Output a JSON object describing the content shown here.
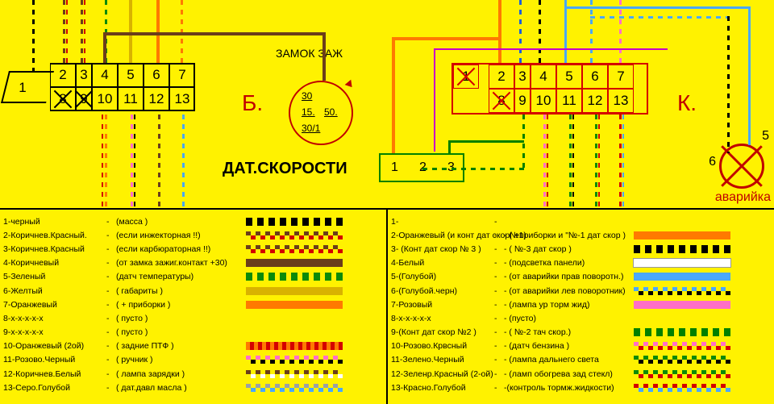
{
  "labels": {
    "b": "Б.",
    "k": "К.",
    "ign_title": "ЗАМОК ЗАЖ",
    "speed_title": "ДАТ.СКОРОСТИ",
    "hazard": "аварийка",
    "hazard_5": "5",
    "hazard_6": "6"
  },
  "ign": {
    "r1": "30",
    "r2a": "15.",
    "r2b": "50.",
    "r3": "30/1"
  },
  "conn_b": {
    "pins": [
      1,
      2,
      3,
      4,
      5,
      6,
      7,
      8,
      9,
      10,
      11,
      12,
      13
    ],
    "crossed": [
      8,
      9
    ]
  },
  "conn_k": {
    "pins": [
      1,
      2,
      3,
      4,
      5,
      6,
      7,
      8,
      9,
      10,
      11,
      12,
      13
    ],
    "crossed": [
      1,
      8
    ]
  },
  "speed": {
    "pins": [
      1,
      2,
      3
    ]
  },
  "colors": {
    "black": "#000000",
    "brown": "#6b3e1a",
    "red": "#d40000",
    "green": "#0a8a0a",
    "yellow": "#ffd400",
    "orange": "#ff7a00",
    "blue": "#1e5fd8",
    "lightblue": "#4aa8ff",
    "pink": "#ff6ec7",
    "white": "#ffffff",
    "gray": "#9aa0a6",
    "dkgreen": "#0a5a0a"
  },
  "legend_left": [
    {
      "n": "1-черный",
      "d": "(масса )",
      "c1": "#000000",
      "p": "dash"
    },
    {
      "n": "2-Коричнев.Красный.",
      "d": "(если инжекторная !!)",
      "c1": "#6b3e1a",
      "c2": "#d40000",
      "p": "bicolor-dash"
    },
    {
      "n": "3-Коричнев.Красный",
      "d": "(если карбюраторная !!)",
      "c1": "#6b3e1a",
      "c2": "#d40000",
      "p": "bicolor-dash"
    },
    {
      "n": "4-Коричневый",
      "d": "(от замка зажиг.контакт +30)",
      "c1": "#6b3e1a",
      "p": "solid"
    },
    {
      "n": "5-Зеленый",
      "d": "(датч температуры)",
      "c1": "#0a8a0a",
      "p": "dash"
    },
    {
      "n": "6-Желтый",
      "d": "( габариты )",
      "c1": "#d9b300",
      "p": "solid"
    },
    {
      "n": "7-Оранжевый",
      "d": "( + приборки )",
      "c1": "#ff7a00",
      "p": "solid"
    },
    {
      "n": "8-х-х-х-х-х",
      "d": "( пусто )",
      "c1": "#000000",
      "p": "none"
    },
    {
      "n": "9-х-х-х-х-х",
      "d": "( пусто )",
      "c1": "#000000",
      "p": "none"
    },
    {
      "n": "10-Оранжевый (2ой)",
      "d": "( задние ПТФ )",
      "c1": "#ff7a00",
      "c2": "#d40000",
      "p": "stripe"
    },
    {
      "n": "11-Розово.Черный",
      "d": "( ручник )",
      "c1": "#ff6ec7",
      "c2": "#000000",
      "p": "bicolor-dash"
    },
    {
      "n": "12-Коричнев.Белый",
      "d": "( лампа зарядки )",
      "c1": "#6b3e1a",
      "c2": "#ffffff",
      "p": "bicolor-dash"
    },
    {
      "n": "13-Серо.Голубой",
      "d": "( дат.давл масла )",
      "c1": "#9aa0a6",
      "c2": "#4aa8ff",
      "p": "bicolor-dash"
    }
  ],
  "legend_right": [
    {
      "n": "1-",
      "d": "",
      "p": "none"
    },
    {
      "n": "2-Оранжевый (и конт дат скор№1)",
      "d": "- ( +приборки и \"№-1 дат скор )",
      "c1": "#ff7a00",
      "p": "solid"
    },
    {
      "n": "3- (Конт дат скор № 3 )",
      "d": "- ( №-3 дат скор )",
      "c1": "#000000",
      "p": "dash"
    },
    {
      "n": "4-Белый",
      "d": "- (подсветка панели)",
      "c1": "#ffffff",
      "p": "solid"
    },
    {
      "n": "5-(Голубой)",
      "d": "- (от аварийки прав поворотн.)",
      "c1": "#4aa8ff",
      "p": "solid"
    },
    {
      "n": "6-(Голубой.черн)",
      "d": "- (от аварийки лев поворотник)",
      "c1": "#4aa8ff",
      "c2": "#000000",
      "p": "bicolor-dash"
    },
    {
      "n": "7-Розовый",
      "d": "- (лампа ур торм жид)",
      "c1": "#ff6ec7",
      "p": "solid"
    },
    {
      "n": "8-х-х-х-х-х",
      "d": "- (пусто)",
      "p": "none"
    },
    {
      "n": "9-(Конт дат скор №2 )",
      "d": "- ( №-2 тач скор.)",
      "c1": "#008000",
      "p": "dash"
    },
    {
      "n": "10-Розово.Крвсный",
      "d": "- (датч бензина )",
      "c1": "#ff6ec7",
      "c2": "#d40000",
      "p": "bicolor-dash"
    },
    {
      "n": "11-Зелено.Черный",
      "d": "- (лампа дальнего света",
      "c1": "#0a8a0a",
      "c2": "#000000",
      "p": "bicolor-dash"
    },
    {
      "n": "12-Зеленр.Красный (2-ой)",
      "d": "- (ламп обогрева зад стекл)",
      "c1": "#0a8a0a",
      "c2": "#d40000",
      "p": "bicolor-dash"
    },
    {
      "n": "13-Красно.Голубой",
      "d": "-(контроль тормж.жидкости)",
      "c1": "#d40000",
      "c2": "#4aa8ff",
      "p": "bicolor-dash"
    }
  ]
}
